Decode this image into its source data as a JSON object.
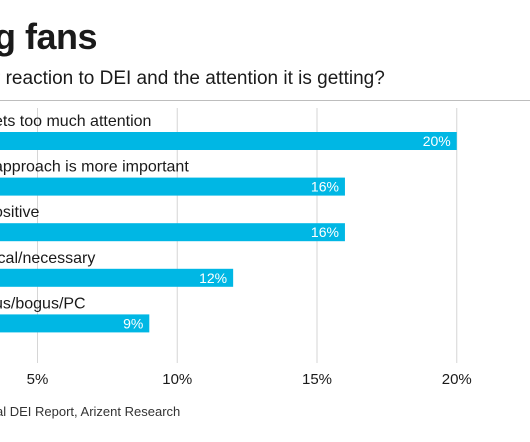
{
  "title": "g fans",
  "subtitle": "r reaction to DEI and the attention it is getting?",
  "source": "al DEI Report, Arizent Research",
  "colors": {
    "bar": "#00b7e4",
    "grid": "#d6d6d6",
    "bar_label": "#ffffff",
    "text": "#1a1a1a"
  },
  "chart_data": {
    "type": "bar",
    "orientation": "horizontal",
    "categories": [
      "ets too much attention",
      "approach is more important",
      "ositive",
      "ical/necessary",
      "us/bogus/PC"
    ],
    "values": [
      20,
      16,
      16,
      12,
      9
    ],
    "value_labels": [
      "20%",
      "16%",
      "16%",
      "12%",
      "9%"
    ],
    "x_ticks": [
      5,
      10,
      15,
      20
    ],
    "x_tick_labels": [
      "5%",
      "10%",
      "15%",
      "20%"
    ],
    "xlim": [
      3.6,
      22.5
    ],
    "grid": true
  }
}
